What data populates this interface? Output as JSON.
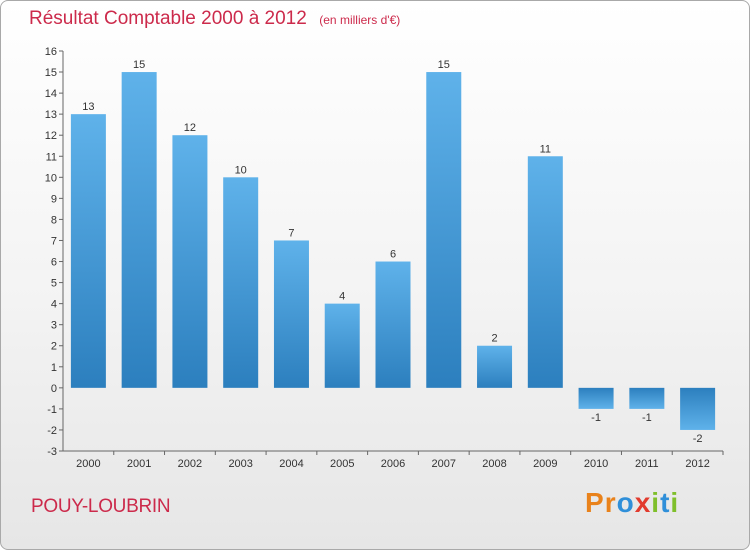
{
  "chart_data": {
    "type": "bar",
    "title": "Résultat Comptable 2000 à 2012",
    "subtitle": "(en milliers d'€)",
    "categories": [
      "2000",
      "2001",
      "2002",
      "2003",
      "2004",
      "2005",
      "2006",
      "2007",
      "2008",
      "2009",
      "2010",
      "2011",
      "2012"
    ],
    "values": [
      13,
      15,
      12,
      10,
      7,
      4,
      6,
      15,
      2,
      11,
      -1,
      -1,
      -2
    ],
    "data_labels": [
      "13",
      "15",
      "12",
      "10",
      "7",
      "4",
      "6",
      "15",
      "2",
      "11",
      "-1",
      "-1",
      "-2"
    ],
    "yticks": [
      16,
      15,
      14,
      13,
      12,
      11,
      10,
      9,
      8,
      7,
      6,
      5,
      4,
      3,
      2,
      1,
      0,
      -1,
      -2,
      -3
    ],
    "ylim": [
      -3,
      16
    ],
    "xlabel": "",
    "ylabel": "",
    "grid": false,
    "legend": "none"
  },
  "footer": {
    "commune": "POUY-LOUBRIN",
    "brand_letters": [
      "P",
      "r",
      "o",
      "x",
      "i",
      "t",
      "i"
    ]
  },
  "colors": {
    "title": "#cc2a4b",
    "bar_dark": "#2c7fbe",
    "bar_light": "#5fb2ea",
    "brand": [
      "#e9821b",
      "#e9821b",
      "#2f8fd9",
      "#e23b2e",
      "#7fbf2b",
      "#2f8fd9",
      "#7fbf2b"
    ]
  }
}
